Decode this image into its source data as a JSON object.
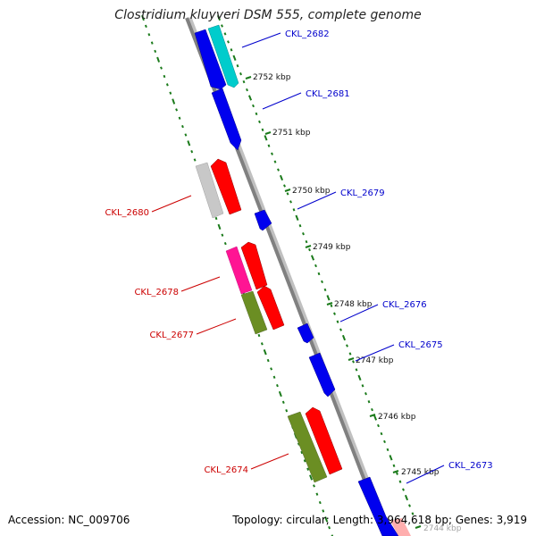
{
  "header": {
    "title": "Clostridium kluyveri DSM 555, complete genome"
  },
  "footer": {
    "accession": "Accession: NC_009706",
    "topology": "Topology: circular; Length: 3,964,618 bp; Genes: 3,919"
  },
  "colors": {
    "backbone": "#808080",
    "tick": "#1a7a1a",
    "forward_label": "#0000cc",
    "reverse_label": "#cc0000"
  },
  "scale_labels": [
    "2752 kbp",
    "2751 kbp",
    "2750 kbp",
    "2749 kbp",
    "2748 kbp",
    "2747 kbp",
    "2746 kbp",
    "2745 kbp",
    "2744 kbp"
  ],
  "genes": [
    {
      "label": "CKL_2682",
      "strand": "forward",
      "color": "#00cccc"
    },
    {
      "label": "CKL_2681",
      "strand": "forward",
      "color": "#0000ee"
    },
    {
      "label": "CKL_2680",
      "strand": "reverse",
      "color": "#ff0000"
    },
    {
      "label": "CKL_2679",
      "strand": "forward",
      "color": "#0000ee"
    },
    {
      "label": "CKL_2678",
      "strand": "reverse",
      "color": "#ff1493"
    },
    {
      "label": "CKL_2677",
      "strand": "reverse",
      "color": "#6b8e23"
    },
    {
      "label": "CKL_2676",
      "strand": "forward",
      "color": "#0000ee"
    },
    {
      "label": "CKL_2675",
      "strand": "forward",
      "color": "#0000ee"
    },
    {
      "label": "CKL_2674",
      "strand": "reverse",
      "color": "#6b8e23"
    },
    {
      "label": "CKL_2673",
      "strand": "forward",
      "color": "#0000ee"
    }
  ]
}
